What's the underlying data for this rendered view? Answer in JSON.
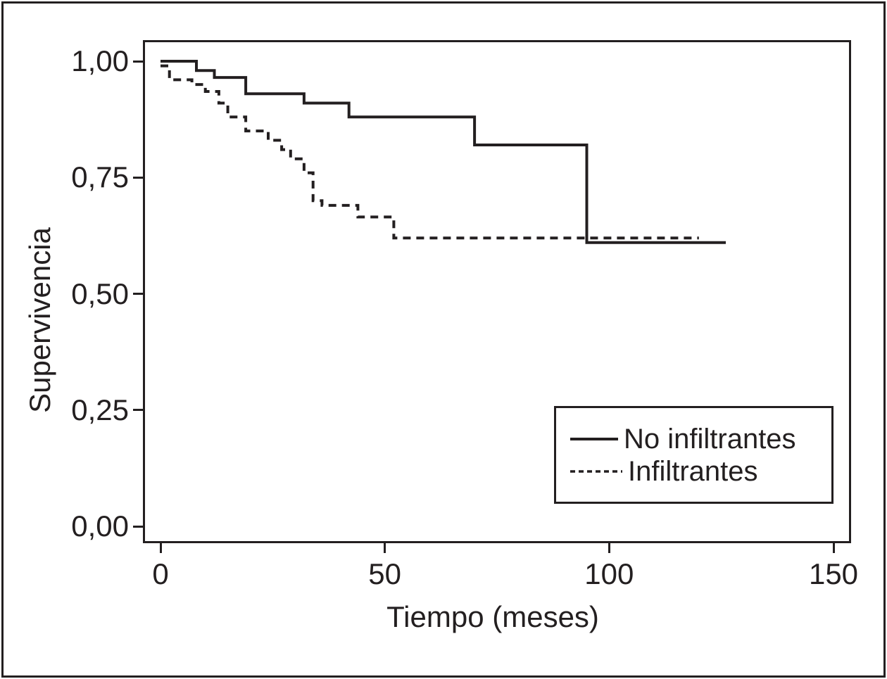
{
  "figure": {
    "background_color": "#ffffff",
    "ink_color": "#231f20"
  },
  "chart_data": {
    "type": "line",
    "subtype": "kaplan-meier-step",
    "title": "",
    "xlabel": "Tiempo (meses)",
    "ylabel": "Supervivencia",
    "xlim": [
      0,
      150
    ],
    "ylim": [
      0.0,
      1.0
    ],
    "grid": false,
    "xticks": {
      "values": [
        0,
        50,
        100,
        150
      ],
      "labels": [
        "0",
        "50",
        "100",
        "150"
      ]
    },
    "yticks": {
      "values": [
        1.0,
        0.75,
        0.5,
        0.25,
        0.0
      ],
      "labels": [
        "1,00",
        "0,75",
        "0,50",
        "0,25",
        "0,00"
      ]
    },
    "legend": {
      "position": "bottom-right",
      "entries": [
        {
          "label": "No infiltrantes",
          "line_style": "solid"
        },
        {
          "label": "Infiltrantes",
          "line_style": "dashed"
        }
      ]
    },
    "series": [
      {
        "name": "No infiltrantes",
        "line_style": "solid",
        "color": "#231f20",
        "steps": [
          [
            0,
            1.0
          ],
          [
            8,
            0.98
          ],
          [
            12,
            0.965
          ],
          [
            19,
            0.93
          ],
          [
            32,
            0.91
          ],
          [
            42,
            0.88
          ],
          [
            70,
            0.82
          ],
          [
            95,
            0.61
          ]
        ],
        "end_time": 126
      },
      {
        "name": "Infiltrantes",
        "line_style": "dashed",
        "color": "#231f20",
        "steps": [
          [
            0,
            0.99
          ],
          [
            2,
            0.96
          ],
          [
            7,
            0.95
          ],
          [
            10,
            0.935
          ],
          [
            13,
            0.91
          ],
          [
            15,
            0.88
          ],
          [
            19,
            0.85
          ],
          [
            24,
            0.83
          ],
          [
            27,
            0.81
          ],
          [
            29,
            0.79
          ],
          [
            32,
            0.76
          ],
          [
            34,
            0.7
          ],
          [
            36,
            0.69
          ],
          [
            44,
            0.665
          ],
          [
            52,
            0.62
          ]
        ],
        "end_time": 120
      }
    ]
  }
}
